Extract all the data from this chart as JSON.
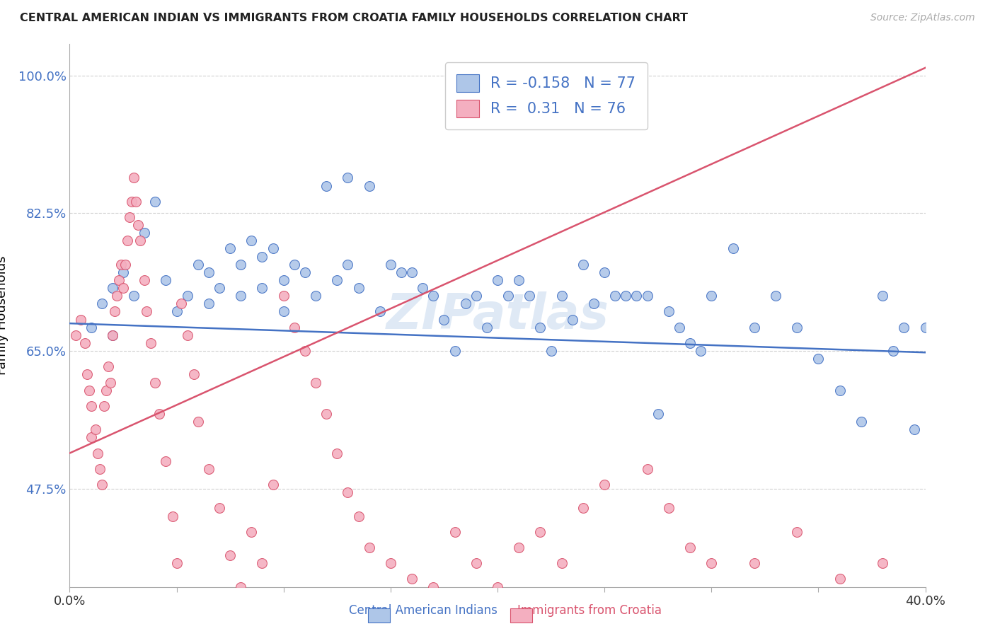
{
  "title": "CENTRAL AMERICAN INDIAN VS IMMIGRANTS FROM CROATIA FAMILY HOUSEHOLDS CORRELATION CHART",
  "source": "Source: ZipAtlas.com",
  "ylabel": "Family Households",
  "xlim": [
    0.0,
    0.4
  ],
  "ylim": [
    0.35,
    1.04
  ],
  "ytick_vals": [
    0.475,
    0.65,
    0.825,
    1.0
  ],
  "ytick_labels": [
    "47.5%",
    "65.0%",
    "82.5%",
    "100.0%"
  ],
  "xtick_vals": [
    0.0,
    0.05,
    0.1,
    0.15,
    0.2,
    0.25,
    0.3,
    0.35,
    0.4
  ],
  "xtick_labels": [
    "0.0%",
    "",
    "",
    "",
    "",
    "",
    "",
    "",
    "40.0%"
  ],
  "blue_R": -0.158,
  "blue_N": 77,
  "pink_R": 0.31,
  "pink_N": 76,
  "blue_color": "#aec6e8",
  "pink_color": "#f4afc0",
  "blue_line_color": "#4472c4",
  "pink_line_color": "#d9546e",
  "watermark": "ZIPatlas",
  "blue_scatter_x": [
    0.01,
    0.015,
    0.02,
    0.02,
    0.025,
    0.03,
    0.035,
    0.04,
    0.045,
    0.05,
    0.055,
    0.06,
    0.065,
    0.065,
    0.07,
    0.075,
    0.08,
    0.08,
    0.085,
    0.09,
    0.09,
    0.095,
    0.1,
    0.1,
    0.105,
    0.11,
    0.115,
    0.12,
    0.125,
    0.13,
    0.13,
    0.135,
    0.14,
    0.145,
    0.15,
    0.155,
    0.16,
    0.165,
    0.17,
    0.175,
    0.18,
    0.185,
    0.19,
    0.195,
    0.2,
    0.205,
    0.21,
    0.215,
    0.22,
    0.225,
    0.23,
    0.235,
    0.24,
    0.245,
    0.25,
    0.255,
    0.26,
    0.265,
    0.27,
    0.275,
    0.28,
    0.285,
    0.29,
    0.295,
    0.3,
    0.31,
    0.32,
    0.33,
    0.34,
    0.35,
    0.36,
    0.37,
    0.38,
    0.385,
    0.39,
    0.395,
    0.4
  ],
  "blue_scatter_y": [
    0.68,
    0.71,
    0.67,
    0.73,
    0.75,
    0.72,
    0.8,
    0.84,
    0.74,
    0.7,
    0.72,
    0.76,
    0.75,
    0.71,
    0.73,
    0.78,
    0.76,
    0.72,
    0.79,
    0.77,
    0.73,
    0.78,
    0.74,
    0.7,
    0.76,
    0.75,
    0.72,
    0.86,
    0.74,
    0.87,
    0.76,
    0.73,
    0.86,
    0.7,
    0.76,
    0.75,
    0.75,
    0.73,
    0.72,
    0.69,
    0.65,
    0.71,
    0.72,
    0.68,
    0.74,
    0.72,
    0.74,
    0.72,
    0.68,
    0.65,
    0.72,
    0.69,
    0.76,
    0.71,
    0.75,
    0.72,
    0.72,
    0.72,
    0.72,
    0.57,
    0.7,
    0.68,
    0.66,
    0.65,
    0.72,
    0.78,
    0.68,
    0.72,
    0.68,
    0.64,
    0.6,
    0.56,
    0.72,
    0.65,
    0.68,
    0.55,
    0.68
  ],
  "pink_scatter_x": [
    0.003,
    0.005,
    0.007,
    0.008,
    0.009,
    0.01,
    0.01,
    0.012,
    0.013,
    0.014,
    0.015,
    0.016,
    0.017,
    0.018,
    0.019,
    0.02,
    0.021,
    0.022,
    0.023,
    0.024,
    0.025,
    0.026,
    0.027,
    0.028,
    0.029,
    0.03,
    0.031,
    0.032,
    0.033,
    0.035,
    0.036,
    0.038,
    0.04,
    0.042,
    0.045,
    0.048,
    0.05,
    0.052,
    0.055,
    0.058,
    0.06,
    0.065,
    0.07,
    0.075,
    0.08,
    0.085,
    0.09,
    0.095,
    0.1,
    0.105,
    0.11,
    0.115,
    0.12,
    0.125,
    0.13,
    0.135,
    0.14,
    0.15,
    0.16,
    0.17,
    0.18,
    0.19,
    0.2,
    0.21,
    0.22,
    0.23,
    0.24,
    0.25,
    0.27,
    0.28,
    0.29,
    0.3,
    0.32,
    0.34,
    0.36,
    0.38
  ],
  "pink_scatter_y": [
    0.67,
    0.69,
    0.66,
    0.62,
    0.6,
    0.58,
    0.54,
    0.55,
    0.52,
    0.5,
    0.48,
    0.58,
    0.6,
    0.63,
    0.61,
    0.67,
    0.7,
    0.72,
    0.74,
    0.76,
    0.73,
    0.76,
    0.79,
    0.82,
    0.84,
    0.87,
    0.84,
    0.81,
    0.79,
    0.74,
    0.7,
    0.66,
    0.61,
    0.57,
    0.51,
    0.44,
    0.38,
    0.71,
    0.67,
    0.62,
    0.56,
    0.5,
    0.45,
    0.39,
    0.35,
    0.42,
    0.38,
    0.48,
    0.72,
    0.68,
    0.65,
    0.61,
    0.57,
    0.52,
    0.47,
    0.44,
    0.4,
    0.38,
    0.36,
    0.35,
    0.42,
    0.38,
    0.35,
    0.4,
    0.42,
    0.38,
    0.45,
    0.48,
    0.5,
    0.45,
    0.4,
    0.38,
    0.38,
    0.42,
    0.36,
    0.38
  ]
}
